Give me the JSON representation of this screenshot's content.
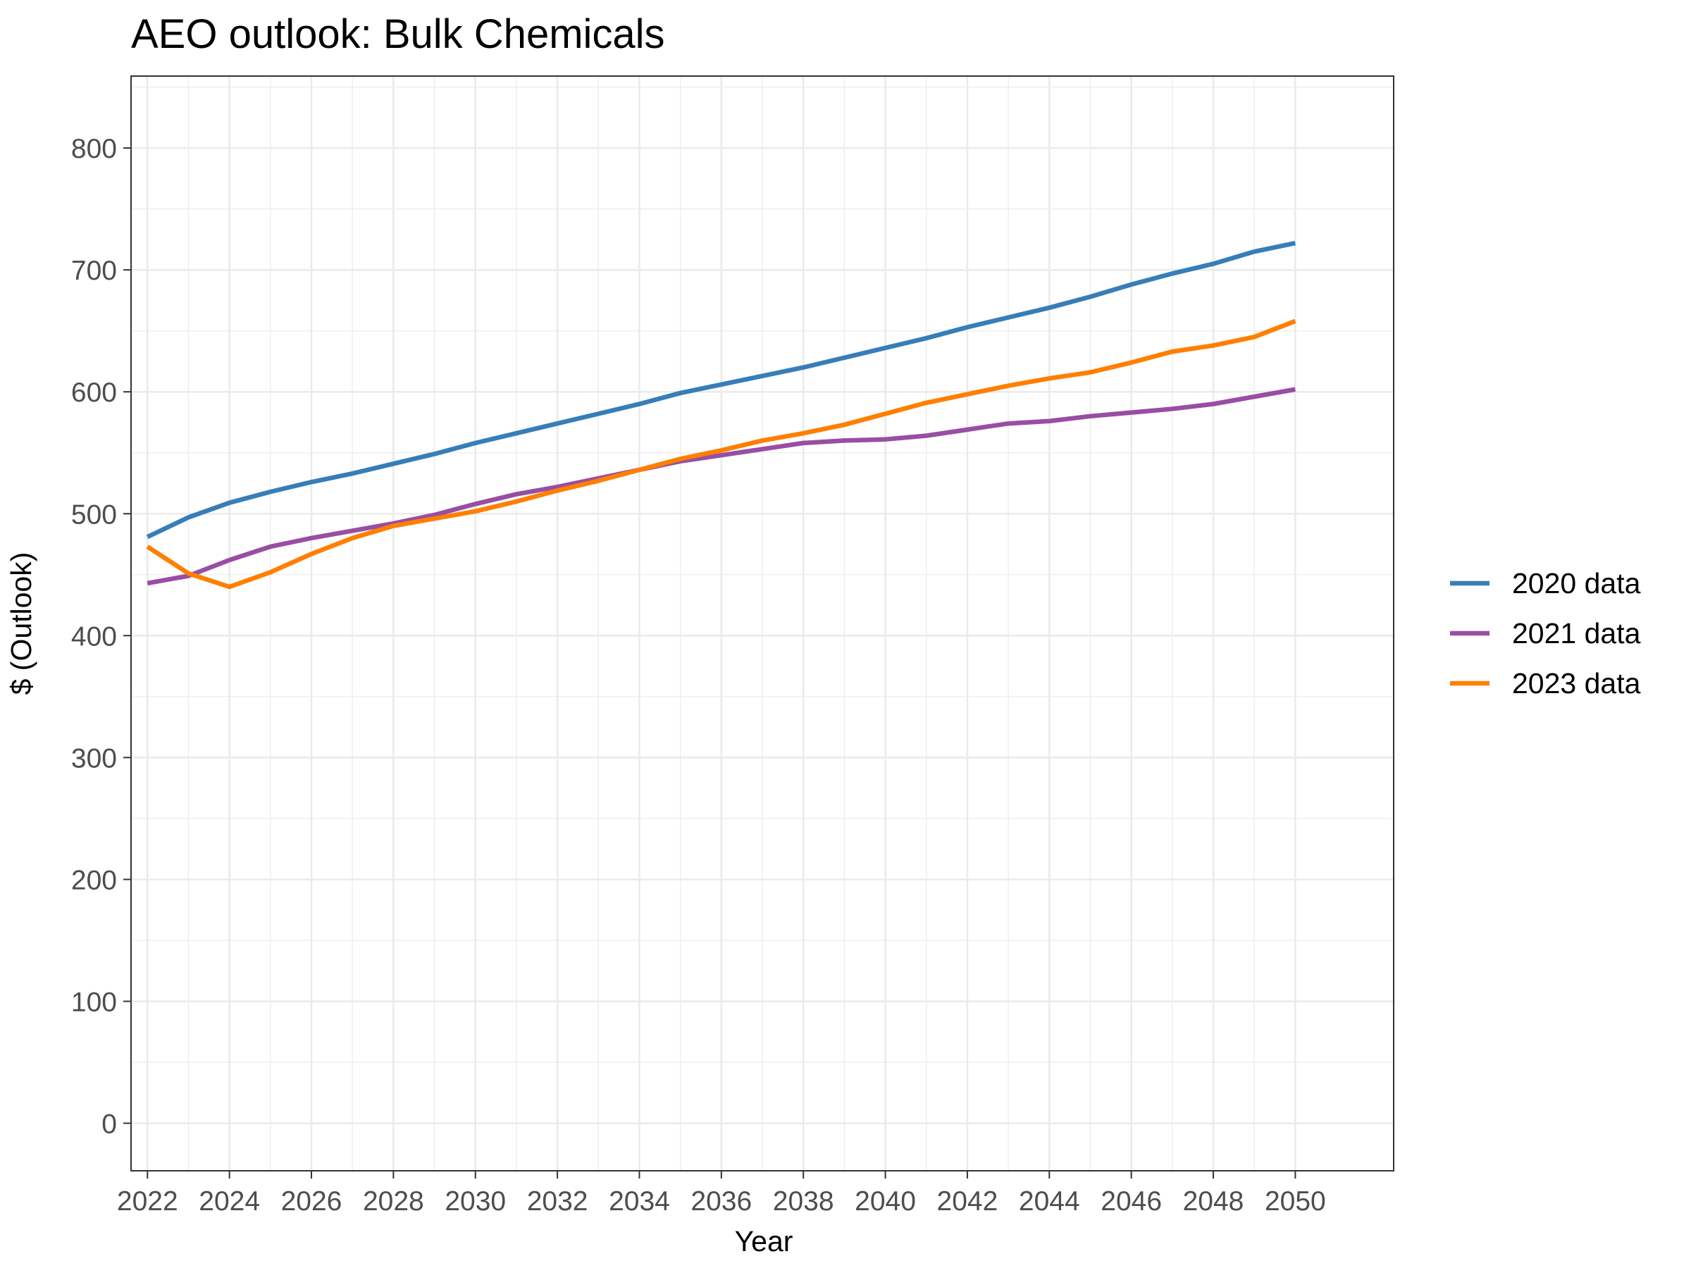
{
  "chart_data": {
    "type": "line",
    "title": "AEO outlook: Bulk Chemicals",
    "xlabel": "Year",
    "ylabel": "$ (Outlook)",
    "x": [
      2022,
      2023,
      2024,
      2025,
      2026,
      2027,
      2028,
      2029,
      2030,
      2031,
      2032,
      2033,
      2034,
      2035,
      2036,
      2037,
      2038,
      2039,
      2040,
      2041,
      2042,
      2043,
      2044,
      2045,
      2046,
      2047,
      2048,
      2049,
      2050
    ],
    "x_ticks": [
      "2022",
      "2024",
      "2026",
      "2028",
      "2030",
      "2032",
      "2034",
      "2036",
      "2038",
      "2040",
      "2042",
      "2044",
      "2046",
      "2048",
      "2050"
    ],
    "y_ticks": [
      "0",
      "100",
      "200",
      "300",
      "400",
      "500",
      "600",
      "700",
      "800"
    ],
    "xlim": [
      2021.6,
      2052.4
    ],
    "ylim": [
      -39,
      859
    ],
    "grid": true,
    "legend_position": "right",
    "series": [
      {
        "name": "2020 data",
        "color": "#377eb8",
        "values": [
          481,
          497,
          509,
          518,
          526,
          533,
          541,
          549,
          558,
          566,
          574,
          582,
          590,
          599,
          606,
          613,
          620,
          628,
          636,
          644,
          653,
          661,
          669,
          678,
          688,
          697,
          705,
          715,
          722
        ]
      },
      {
        "name": "2021 data",
        "color": "#984ea3",
        "values": [
          443,
          449,
          462,
          473,
          480,
          486,
          492,
          499,
          508,
          516,
          522,
          529,
          536,
          543,
          548,
          553,
          558,
          560,
          561,
          564,
          569,
          574,
          576,
          580,
          583,
          586,
          590,
          596,
          602
        ]
      },
      {
        "name": "2023 data",
        "color": "#ff7f00",
        "values": [
          473,
          451,
          440,
          452,
          467,
          480,
          490,
          496,
          502,
          510,
          519,
          527,
          536,
          545,
          552,
          560,
          566,
          573,
          582,
          591,
          598,
          605,
          611,
          616,
          624,
          633,
          638,
          645,
          658
        ]
      }
    ]
  }
}
